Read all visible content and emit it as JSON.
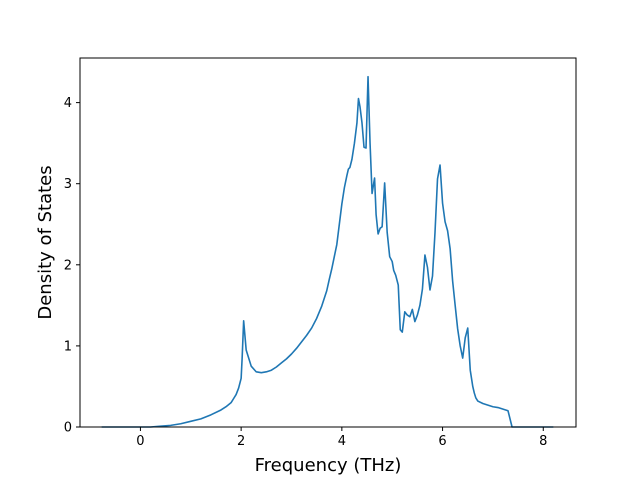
{
  "chart_data": {
    "type": "line",
    "title": "",
    "xlabel": "Frequency (THz)",
    "ylabel": "Density of States",
    "xlim": [
      -1.2,
      8.65
    ],
    "ylim": [
      0,
      4.55
    ],
    "xticks": [
      0,
      2,
      4,
      6,
      8
    ],
    "yticks": [
      0,
      1,
      2,
      3,
      4
    ],
    "grid": false,
    "legend": null,
    "series": [
      {
        "color": "#1f77b4",
        "x": [
          -0.77,
          -0.5,
          -0.2,
          0.0,
          0.2,
          0.4,
          0.6,
          0.8,
          1.0,
          1.2,
          1.4,
          1.6,
          1.7,
          1.8,
          1.85,
          1.9,
          1.95,
          2.0,
          2.02,
          2.05,
          2.1,
          2.2,
          2.3,
          2.4,
          2.5,
          2.6,
          2.7,
          2.8,
          2.9,
          3.0,
          3.1,
          3.2,
          3.3,
          3.4,
          3.5,
          3.6,
          3.7,
          3.75,
          3.8,
          3.85,
          3.9,
          3.95,
          4.0,
          4.05,
          4.1,
          4.13,
          4.16,
          4.2,
          4.25,
          4.3,
          4.33,
          4.36,
          4.4,
          4.44,
          4.48,
          4.52,
          4.56,
          4.6,
          4.65,
          4.68,
          4.72,
          4.76,
          4.8,
          4.85,
          4.9,
          4.95,
          5.0,
          5.03,
          5.07,
          5.12,
          5.16,
          5.2,
          5.25,
          5.3,
          5.35,
          5.4,
          5.45,
          5.5,
          5.55,
          5.6,
          5.65,
          5.7,
          5.75,
          5.8,
          5.85,
          5.9,
          5.95,
          6.0,
          6.05,
          6.1,
          6.15,
          6.2,
          6.25,
          6.3,
          6.35,
          6.4,
          6.45,
          6.5,
          6.55,
          6.6,
          6.63,
          6.66,
          6.7,
          6.8,
          6.9,
          7.0,
          7.1,
          7.2,
          7.3,
          7.38,
          7.45,
          7.6,
          7.8,
          8.0,
          8.2
        ],
        "y": [
          0.0,
          0.0,
          0.0,
          0.0,
          0.0,
          0.01,
          0.02,
          0.04,
          0.07,
          0.1,
          0.15,
          0.21,
          0.25,
          0.3,
          0.35,
          0.4,
          0.48,
          0.6,
          0.85,
          1.31,
          0.95,
          0.75,
          0.68,
          0.67,
          0.68,
          0.7,
          0.74,
          0.79,
          0.84,
          0.9,
          0.97,
          1.05,
          1.13,
          1.22,
          1.34,
          1.49,
          1.68,
          1.82,
          1.95,
          2.1,
          2.25,
          2.5,
          2.75,
          2.95,
          3.1,
          3.18,
          3.2,
          3.3,
          3.5,
          3.75,
          4.05,
          3.95,
          3.75,
          3.45,
          3.44,
          4.32,
          3.5,
          2.88,
          3.07,
          2.62,
          2.38,
          2.45,
          2.47,
          3.01,
          2.4,
          2.1,
          2.04,
          1.93,
          1.87,
          1.75,
          1.2,
          1.17,
          1.42,
          1.38,
          1.36,
          1.45,
          1.3,
          1.38,
          1.5,
          1.7,
          2.12,
          1.97,
          1.69,
          1.86,
          2.4,
          3.06,
          3.23,
          2.76,
          2.53,
          2.42,
          2.2,
          1.8,
          1.5,
          1.21,
          1.0,
          0.85,
          1.1,
          1.22,
          0.7,
          0.5,
          0.42,
          0.36,
          0.32,
          0.29,
          0.27,
          0.25,
          0.24,
          0.22,
          0.2,
          0.0,
          0.0,
          0.0,
          0.0,
          0.0,
          0.0
        ]
      }
    ]
  }
}
